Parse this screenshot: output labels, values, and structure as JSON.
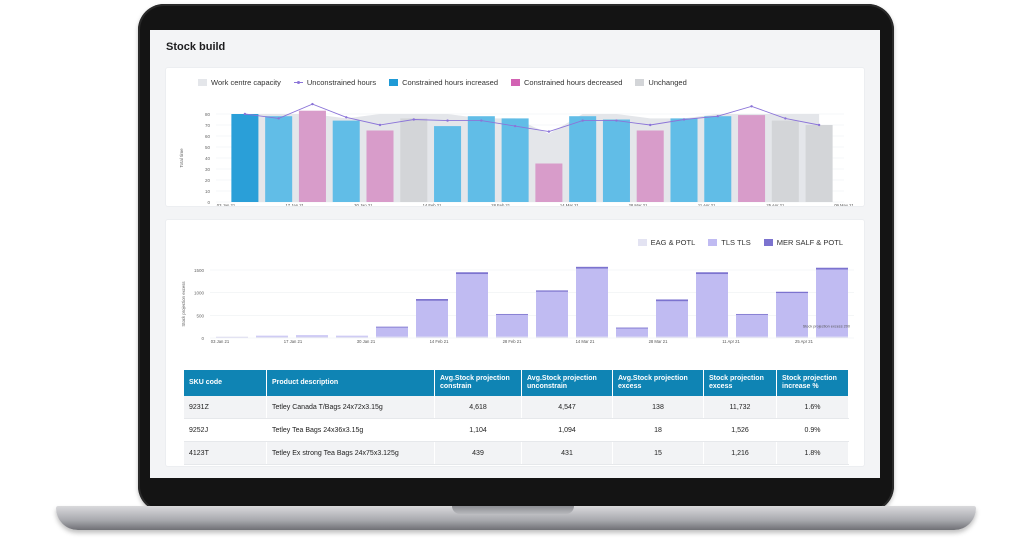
{
  "page": {
    "title": "Stock build"
  },
  "colors": {
    "capacity_fill": "#e4e6ea",
    "unconstrained_line": "#8b74d8",
    "increased": "#61bde7",
    "increased_first": "#2a9fd8",
    "decreased": "#d89cca",
    "unchanged": "#d3d5d8",
    "eag_potl": "#e3e3f2",
    "tls_tls": "#c0bbf2",
    "mer_salf_potl": "#7c73cf",
    "table_header": "#0f84b4"
  },
  "hours_legend": [
    {
      "label": "Work centre capacity",
      "kind": "swatch",
      "color": "#e4e6ea"
    },
    {
      "label": "Unconstrained hours",
      "kind": "line",
      "color": "#8b74d8"
    },
    {
      "label": "Constrained hours increased",
      "kind": "swatch",
      "color": "#1f9ad6"
    },
    {
      "label": "Constrained hours decreased",
      "kind": "swatch",
      "color": "#d262b3"
    },
    {
      "label": "Unchanged",
      "kind": "swatch",
      "color": "#d3d5d8"
    }
  ],
  "stock_legend": [
    {
      "label": "EAG & POTL",
      "color": "#e3e3f2"
    },
    {
      "label": "TLS TLS",
      "color": "#c0bbf2"
    },
    {
      "label": "MER SALF & POTL",
      "color": "#7c73cf"
    }
  ],
  "chart_data": [
    {
      "type": "bar",
      "ylabel": "Total time",
      "ylim": [
        0,
        80
      ],
      "yticks": [
        0,
        10,
        20,
        30,
        40,
        50,
        60,
        70,
        80
      ],
      "grid": true,
      "legend": "top",
      "x_tick_labels": [
        "03 Jan 21",
        "17 Jan 21",
        "30 Jan 21",
        "14 Feb 21",
        "28 Feb 21",
        "14 Mar 21",
        "28 Mar 21",
        "11 Apr 21",
        "25 Apr 21",
        "09 May 21"
      ],
      "constrained_hours": [
        80,
        78,
        83,
        74,
        65,
        76,
        69,
        78,
        76,
        35,
        78,
        75,
        65,
        76,
        78,
        79,
        74,
        70
      ],
      "status": [
        "increased",
        "increased",
        "decreased",
        "increased",
        "decreased",
        "unchanged",
        "increased",
        "increased",
        "increased",
        "decreased",
        "increased",
        "increased",
        "decreased",
        "increased",
        "increased",
        "decreased",
        "unchanged",
        "unchanged"
      ],
      "work_centre_capacity": [
        80,
        80,
        80,
        76,
        80,
        80,
        80,
        76,
        76,
        62,
        80,
        80,
        76,
        76,
        80,
        80,
        80,
        80
      ],
      "unconstrained_hours": [
        80,
        76,
        89,
        77,
        70,
        75,
        74,
        74,
        69,
        64,
        74,
        74,
        70,
        75,
        78,
        87,
        76,
        70
      ]
    },
    {
      "type": "bar",
      "ylabel": "Stock projection excess",
      "ylim": [
        0,
        1500
      ],
      "yticks": [
        0,
        500,
        1000,
        1500
      ],
      "grid": true,
      "legend": "top-right",
      "x_tick_labels": [
        "03 Jan 21",
        "17 Jan 21",
        "30 Jan 21",
        "14 Feb 21",
        "28 Feb 21",
        "14 Mar 21",
        "28 Mar 21",
        "11 Apr 21",
        "25 Apr 21"
      ],
      "series": [
        {
          "name": "EAG & POTL",
          "values": [
            30,
            30,
            30,
            30,
            30,
            30,
            30,
            30,
            30,
            30,
            30,
            30,
            30,
            30,
            30,
            30
          ]
        },
        {
          "name": "TLS TLS",
          "values": [
            0,
            20,
            30,
            20,
            200,
            790,
            1380,
            480,
            990,
            1500,
            180,
            780,
            1380,
            480,
            960,
            1480
          ]
        },
        {
          "name": "MER SALF & POTL",
          "values": [
            0,
            0,
            0,
            0,
            20,
            40,
            40,
            20,
            30,
            40,
            20,
            40,
            40,
            20,
            30,
            40
          ]
        }
      ],
      "annotation": "Stock projection excess 200"
    }
  ],
  "table": {
    "headers": [
      "SKU code",
      "Product description",
      "Avg.Stock projection constrain",
      "Avg.Stock projection unconstrain",
      "Avg.Stock projection excess",
      "Stock projection excess",
      "Stock projection increase %"
    ],
    "rows": [
      [
        "9231Z",
        "Tetley Canada T/Bags 24x72x3.15g",
        "4,618",
        "4,547",
        "138",
        "11,732",
        "1.6%"
      ],
      [
        "9252J",
        "Tetley Tea Bags 24x36x3.15g",
        "1,104",
        "1,094",
        "18",
        "1,526",
        "0.9%"
      ],
      [
        "4123T",
        "Tetley Ex strong Tea Bags 24x75x3.125g",
        "439",
        "431",
        "15",
        "1,216",
        "1.8%"
      ]
    ]
  }
}
